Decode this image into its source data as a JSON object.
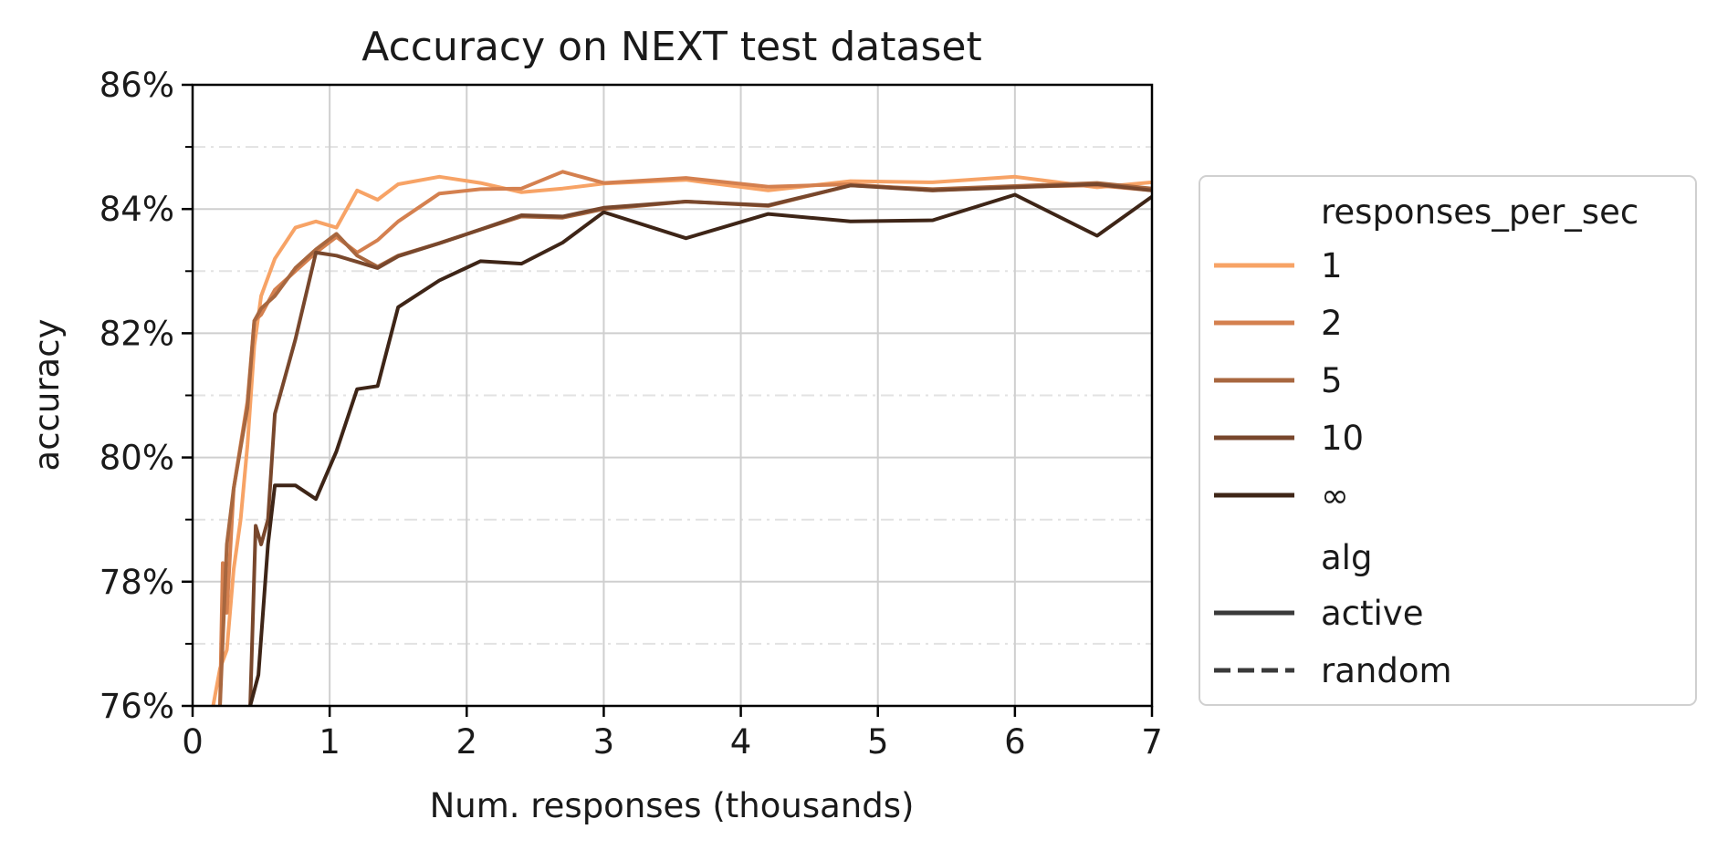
{
  "chart_data": {
    "type": "line",
    "title": "Accuracy on NEXT test dataset",
    "xlabel": "Num. responses (thousands)",
    "ylabel": "accuracy",
    "xlim": [
      0,
      7
    ],
    "ylim": [
      76,
      86
    ],
    "xticks": [
      0,
      1,
      2,
      3,
      4,
      5,
      6,
      7
    ],
    "xtick_labels": [
      "0",
      "1",
      "2",
      "3",
      "4",
      "5",
      "6",
      "7"
    ],
    "yticks": [
      76,
      78,
      80,
      82,
      84,
      86
    ],
    "ytick_labels": [
      "76%",
      "78%",
      "80%",
      "82%",
      "84%",
      "86%"
    ],
    "y_minor_gridlines": [
      77,
      79,
      81,
      83,
      85
    ],
    "grid": true,
    "legend": {
      "placement": "right",
      "hue_title": "responses_per_sec",
      "style_title": "alg",
      "styles": [
        {
          "label": "active",
          "dash": "solid"
        },
        {
          "label": "random",
          "dash": "dashed"
        }
      ],
      "style_color": "#3a3a3a"
    },
    "series": [
      {
        "name": "1",
        "alg": "active",
        "color": "#f7a366",
        "x": [
          0.15,
          0.2,
          0.25,
          0.3,
          0.35,
          0.4,
          0.45,
          0.5,
          0.6,
          0.75,
          0.9,
          1.05,
          1.2,
          1.35,
          1.5,
          1.8,
          2.1,
          2.4,
          2.7,
          3.0,
          3.6,
          4.2,
          4.8,
          5.4,
          6.0,
          6.6,
          7.0
        ],
        "y": [
          76.0,
          76.6,
          76.9,
          78.2,
          79.0,
          80.2,
          81.8,
          82.6,
          83.2,
          83.7,
          83.8,
          83.7,
          84.3,
          84.15,
          84.4,
          84.52,
          84.42,
          84.27,
          84.33,
          84.41,
          84.47,
          84.3,
          84.45,
          84.43,
          84.52,
          84.35,
          84.43
        ]
      },
      {
        "name": "2",
        "alg": "active",
        "color": "#d4804f",
        "x": [
          0.2,
          0.22,
          0.25,
          0.3,
          0.4,
          0.45,
          0.5,
          0.55,
          0.6,
          0.75,
          0.9,
          1.05,
          1.2,
          1.35,
          1.5,
          1.8,
          2.1,
          2.4,
          2.7,
          3.0,
          3.6,
          4.2,
          4.8,
          5.4,
          6.0,
          6.6,
          7.0
        ],
        "y": [
          76.0,
          78.3,
          77.5,
          79.5,
          80.9,
          82.2,
          82.3,
          82.5,
          82.7,
          83.0,
          83.3,
          83.55,
          83.3,
          83.5,
          83.8,
          84.25,
          84.32,
          84.33,
          84.6,
          84.42,
          84.5,
          84.36,
          84.4,
          84.3,
          84.36,
          84.38,
          84.3
        ]
      },
      {
        "name": "5",
        "alg": "active",
        "color": "#a8673f",
        "x": [
          0.2,
          0.25,
          0.3,
          0.4,
          0.45,
          0.5,
          0.6,
          0.75,
          0.9,
          1.05,
          1.2,
          1.35,
          1.5,
          1.8,
          2.1,
          2.4,
          2.7,
          3.0,
          3.6,
          4.2,
          4.8,
          5.4,
          6.0,
          6.6,
          7.0
        ],
        "y": [
          76.0,
          78.6,
          79.5,
          80.8,
          82.2,
          82.4,
          82.6,
          83.05,
          83.35,
          83.6,
          83.25,
          83.07,
          83.25,
          83.45,
          83.67,
          83.88,
          83.86,
          84.0,
          84.12,
          84.05,
          84.38,
          84.32,
          84.37,
          84.42,
          84.33
        ]
      },
      {
        "name": "10",
        "alg": "active",
        "color": "#78472c",
        "x": [
          0.42,
          0.46,
          0.5,
          0.55,
          0.6,
          0.75,
          0.9,
          1.05,
          1.2,
          1.35,
          1.5,
          1.8,
          2.1,
          2.4,
          2.7,
          3.0,
          3.6,
          4.2,
          4.8,
          5.4,
          6.0,
          6.6,
          7.0
        ],
        "y": [
          76.0,
          78.9,
          78.6,
          79.0,
          80.7,
          81.9,
          83.3,
          83.25,
          83.15,
          83.05,
          83.24,
          83.45,
          83.67,
          83.9,
          83.88,
          84.02,
          84.12,
          84.06,
          84.38,
          84.3,
          84.35,
          84.4,
          84.3
        ]
      },
      {
        "name": "∞",
        "alg": "active",
        "color": "#3e2517",
        "x": [
          0.42,
          0.48,
          0.55,
          0.6,
          0.75,
          0.9,
          1.05,
          1.2,
          1.35,
          1.5,
          1.8,
          2.1,
          2.4,
          2.7,
          3.0,
          3.6,
          4.2,
          4.8,
          5.4,
          6.0,
          6.6,
          7.0
        ],
        "y": [
          76.0,
          76.5,
          78.6,
          79.55,
          79.55,
          79.33,
          80.1,
          81.1,
          81.15,
          82.42,
          82.85,
          83.16,
          83.12,
          83.46,
          83.95,
          83.53,
          83.92,
          83.8,
          83.82,
          84.23,
          83.57,
          84.2
        ]
      }
    ]
  }
}
